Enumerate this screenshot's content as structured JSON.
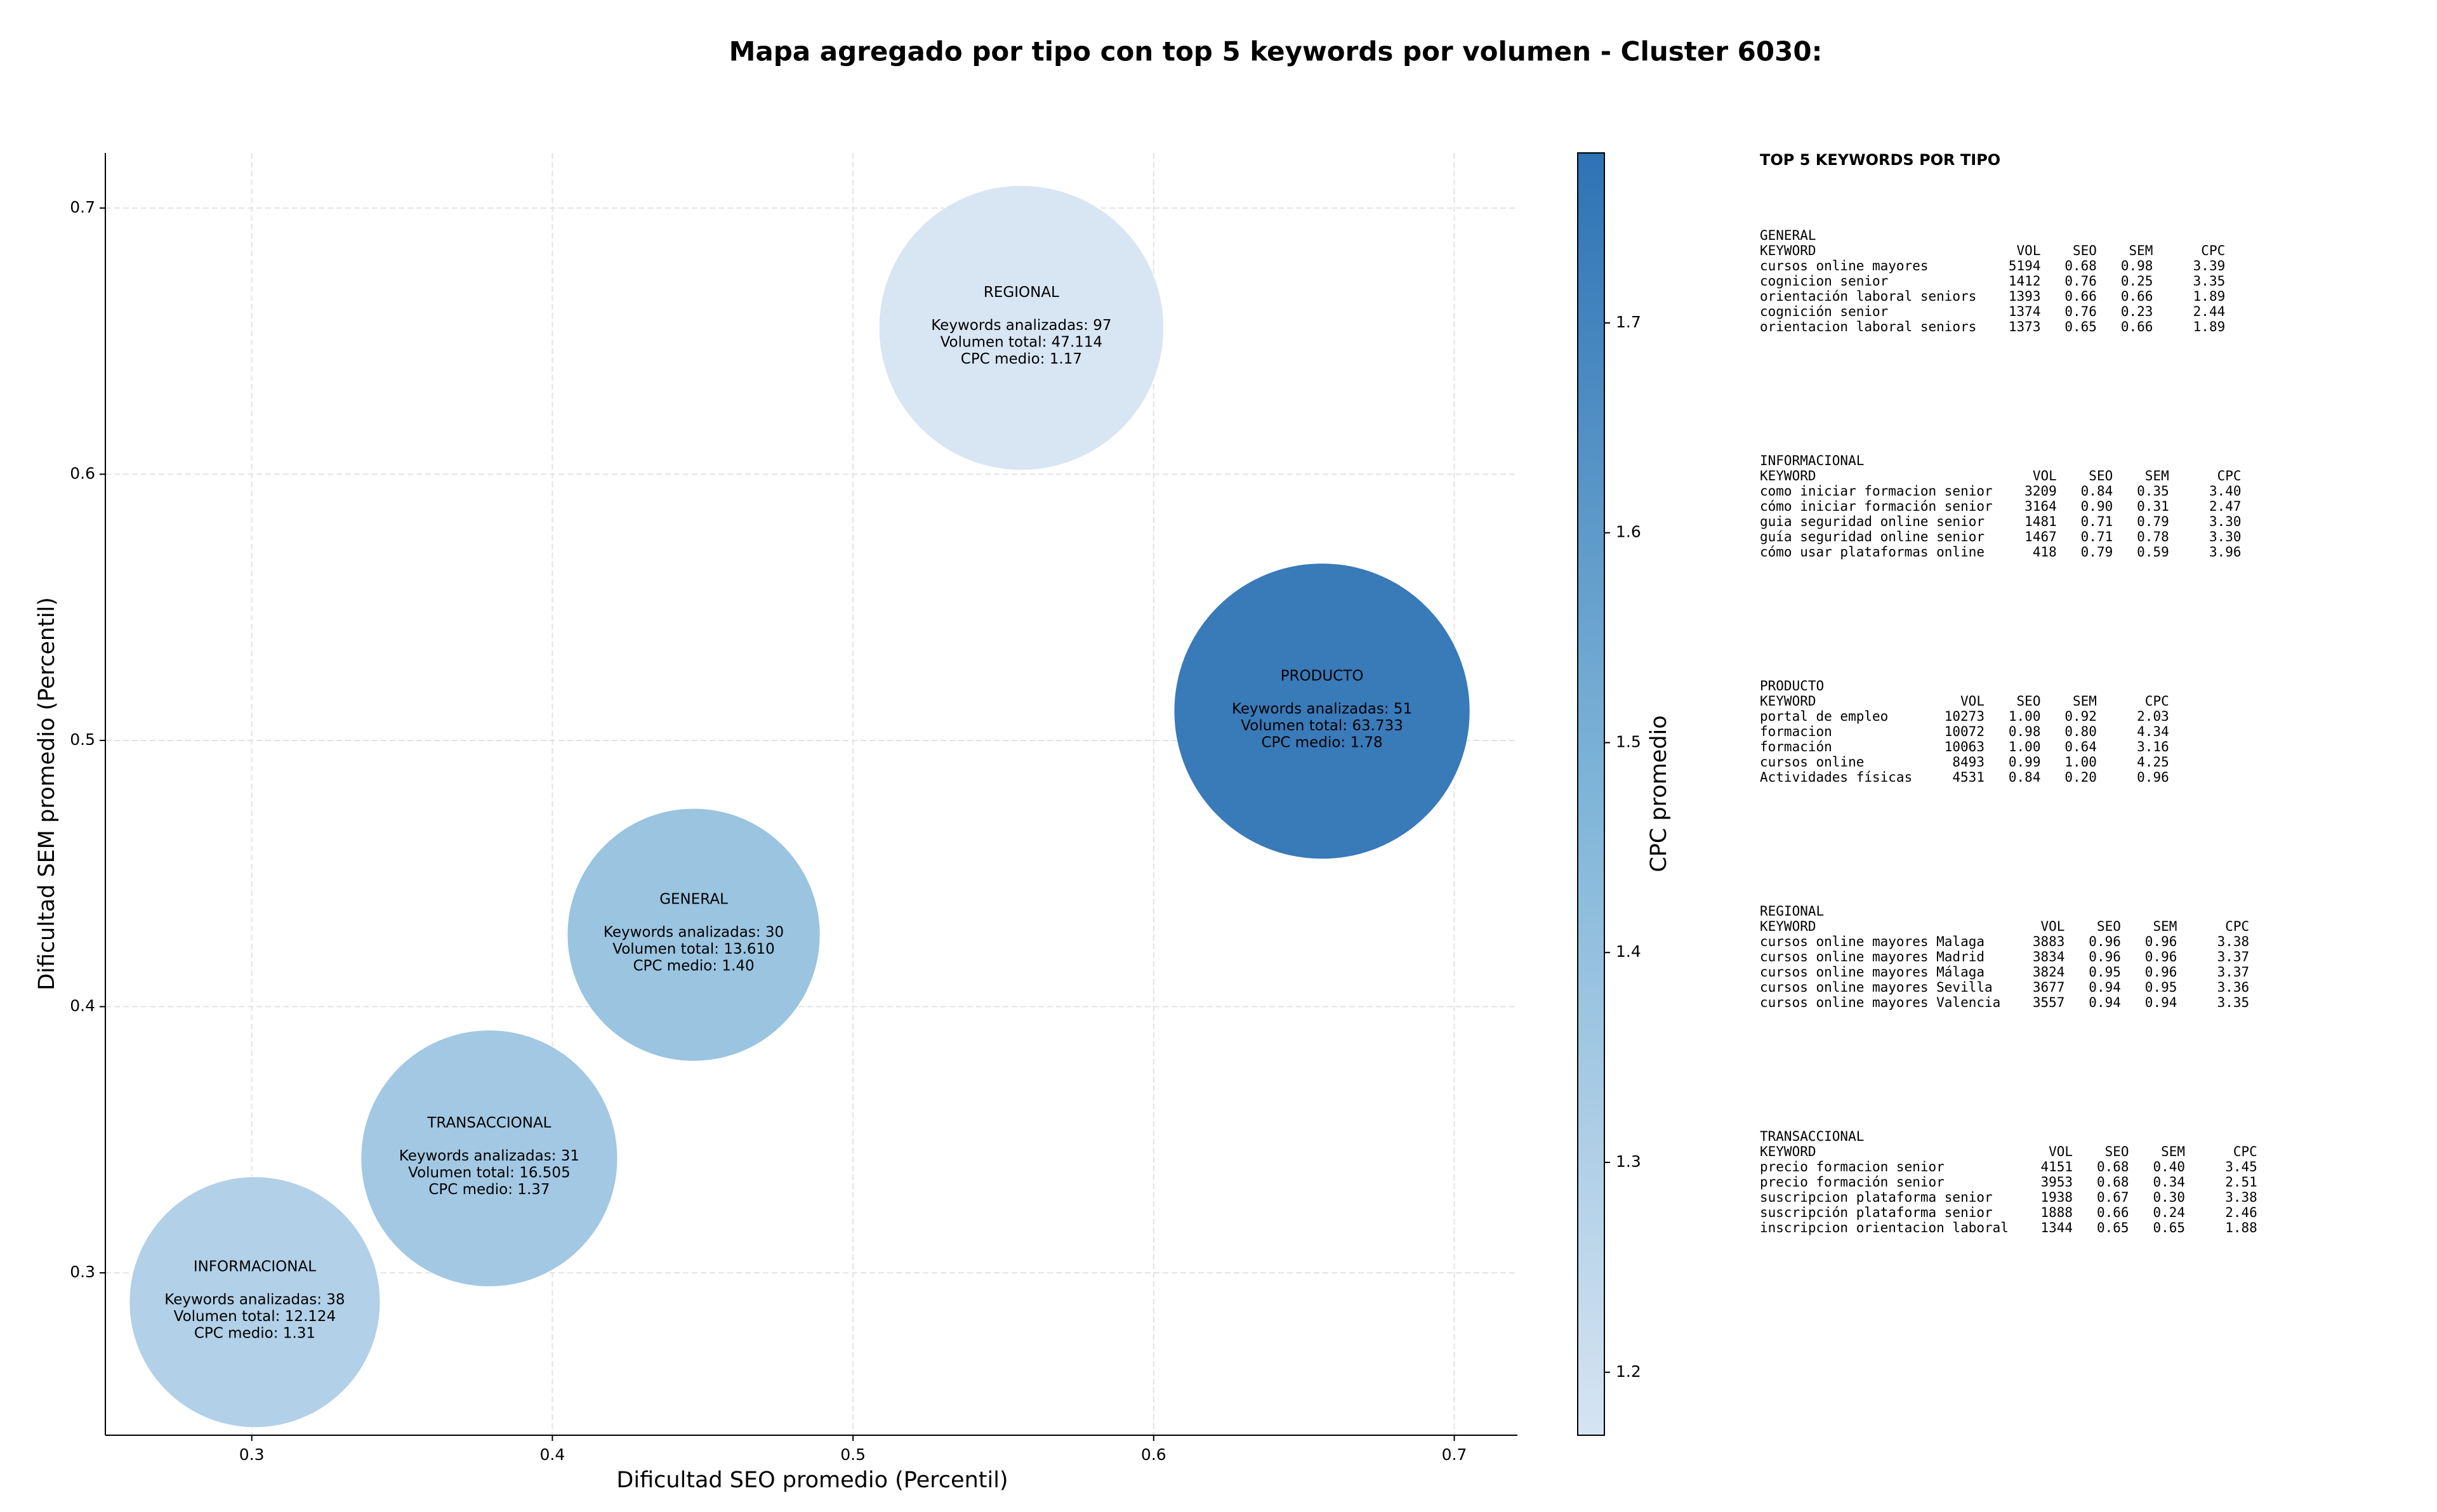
{
  "chart_data": {
    "type": "bubble",
    "title": "Mapa agregado por tipo con top 5 keywords por volumen - Cluster 6030:",
    "xlabel": "Dificultad SEO promedio (Percentil)",
    "ylabel": "Dificultad SEM promedio (Percentil)",
    "xlim": [
      0.2513,
      0.721
    ],
    "ylim": [
      0.239,
      0.7207
    ],
    "xticks": [
      0.3,
      0.4,
      0.5,
      0.6,
      0.7
    ],
    "yticks": [
      0.3,
      0.4,
      0.5,
      0.6,
      0.7
    ],
    "grid": true,
    "points": [
      {
        "name": "REGIONAL",
        "x": 0.556,
        "y": 0.655,
        "volume": 47114,
        "cpc": 1.17,
        "lines": [
          "Keywords analizadas: 97",
          "Volumen total: 47.114",
          "CPC medio: 1.17"
        ]
      },
      {
        "name": "PRODUCTO",
        "x": 0.656,
        "y": 0.511,
        "volume": 63733,
        "cpc": 1.78,
        "lines": [
          "Keywords analizadas: 51",
          "Volumen total: 63.733",
          "CPC medio: 1.78"
        ]
      },
      {
        "name": "GENERAL",
        "x": 0.447,
        "y": 0.427,
        "volume": 13610,
        "cpc": 1.4,
        "lines": [
          "Keywords analizadas: 30",
          "Volumen total: 13.610",
          "CPC medio: 1.40"
        ]
      },
      {
        "name": "TRANSACCIONAL",
        "x": 0.379,
        "y": 0.343,
        "volume": 16505,
        "cpc": 1.37,
        "lines": [
          "Keywords analizadas: 31",
          "Volumen total: 16.505",
          "CPC medio: 1.37"
        ]
      },
      {
        "name": "INFORMACIONAL",
        "x": 0.301,
        "y": 0.289,
        "volume": 12124,
        "cpc": 1.31,
        "lines": [
          "Keywords analizadas: 38",
          "Volumen total: 12.124",
          "CPC medio: 1.31"
        ]
      }
    ],
    "colorbar": {
      "label": "CPC promedio",
      "lim": [
        1.17,
        1.781
      ],
      "ticks": [
        1.2,
        1.3,
        1.4,
        1.5,
        1.6,
        1.7
      ],
      "colors": [
        "#d6e4f2",
        "#7fb5d8",
        "#2e73b5"
      ]
    }
  },
  "side_panel": {
    "title": "TOP 5 KEYWORDS POR TIPO",
    "header": [
      "KEYWORD",
      "VOL",
      "SEO",
      "SEM",
      "CPC"
    ],
    "sections": [
      {
        "name": "GENERAL",
        "rows": [
          [
            "cursos online mayores",
            "5194",
            "0.68",
            "0.98",
            "3.39"
          ],
          [
            "cognicion senior",
            "1412",
            "0.76",
            "0.25",
            "3.35"
          ],
          [
            "orientación laboral seniors",
            "1393",
            "0.66",
            "0.66",
            "1.89"
          ],
          [
            "cognición senior",
            "1374",
            "0.76",
            "0.23",
            "2.44"
          ],
          [
            "orientacion laboral seniors",
            "1373",
            "0.65",
            "0.66",
            "1.89"
          ]
        ]
      },
      {
        "name": "INFORMACIONAL",
        "rows": [
          [
            "como iniciar formacion senior",
            "3209",
            "0.84",
            "0.35",
            "3.40"
          ],
          [
            "cómo iniciar formación senior",
            "3164",
            "0.90",
            "0.31",
            "2.47"
          ],
          [
            "guia seguridad online senior",
            "1481",
            "0.71",
            "0.79",
            "3.30"
          ],
          [
            "guía seguridad online senior",
            "1467",
            "0.71",
            "0.78",
            "3.30"
          ],
          [
            "cómo usar plataformas online",
            "418",
            "0.79",
            "0.59",
            "3.96"
          ]
        ]
      },
      {
        "name": "PRODUCTO",
        "rows": [
          [
            "portal de empleo",
            "10273",
            "1.00",
            "0.92",
            "2.03"
          ],
          [
            "formacion",
            "10072",
            "0.98",
            "0.80",
            "4.34"
          ],
          [
            "formación",
            "10063",
            "1.00",
            "0.64",
            "3.16"
          ],
          [
            "cursos online",
            "8493",
            "0.99",
            "1.00",
            "4.25"
          ],
          [
            "Actividades físicas",
            "4531",
            "0.84",
            "0.20",
            "0.96"
          ]
        ]
      },
      {
        "name": "REGIONAL",
        "rows": [
          [
            "cursos online mayores Malaga",
            "3883",
            "0.96",
            "0.96",
            "3.38"
          ],
          [
            "cursos online mayores Madrid",
            "3834",
            "0.96",
            "0.96",
            "3.37"
          ],
          [
            "cursos online mayores Málaga",
            "3824",
            "0.95",
            "0.96",
            "3.37"
          ],
          [
            "cursos online mayores Sevilla",
            "3677",
            "0.94",
            "0.95",
            "3.36"
          ],
          [
            "cursos online mayores Valencia",
            "3557",
            "0.94",
            "0.94",
            "3.35"
          ]
        ]
      },
      {
        "name": "TRANSACCIONAL",
        "rows": [
          [
            "precio formacion senior",
            "4151",
            "0.68",
            "0.40",
            "3.45"
          ],
          [
            "precio formación senior",
            "3953",
            "0.68",
            "0.34",
            "2.51"
          ],
          [
            "suscripcion plataforma senior",
            "1938",
            "0.67",
            "0.30",
            "3.38"
          ],
          [
            "suscripción plataforma senior",
            "1888",
            "0.66",
            "0.24",
            "2.46"
          ],
          [
            "inscripcion orientacion laboral",
            "1344",
            "0.65",
            "0.65",
            "1.88"
          ]
        ]
      }
    ]
  }
}
